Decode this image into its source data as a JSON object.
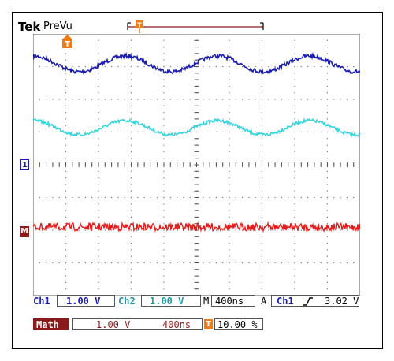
{
  "header": {
    "brand": "Tek",
    "mode": "PreVu"
  },
  "markers": {
    "ch1": "1",
    "math": "M",
    "trigger": "T"
  },
  "colors": {
    "ch1": "#1b1db0",
    "ch2": "#35d6de",
    "math": "#e81919",
    "math_bg": "#8a1a1a",
    "trigger": "#f07b14",
    "grid": "#555555"
  },
  "status": {
    "ch1_label": "Ch1",
    "ch1_scale": "1.00 V",
    "ch2_label": "Ch2",
    "ch2_scale": "1.00 V",
    "timebase_label": "M",
    "timebase": "400ns",
    "acq_label": "A",
    "trig_source": "Ch1",
    "trig_slope": "rising-edge-icon",
    "trig_level": "3.02 V"
  },
  "math": {
    "label": "Math",
    "scale": "1.00 V",
    "timebase": "400ns",
    "trigger_label": "T",
    "trigger_position": "10.00 %"
  }
}
